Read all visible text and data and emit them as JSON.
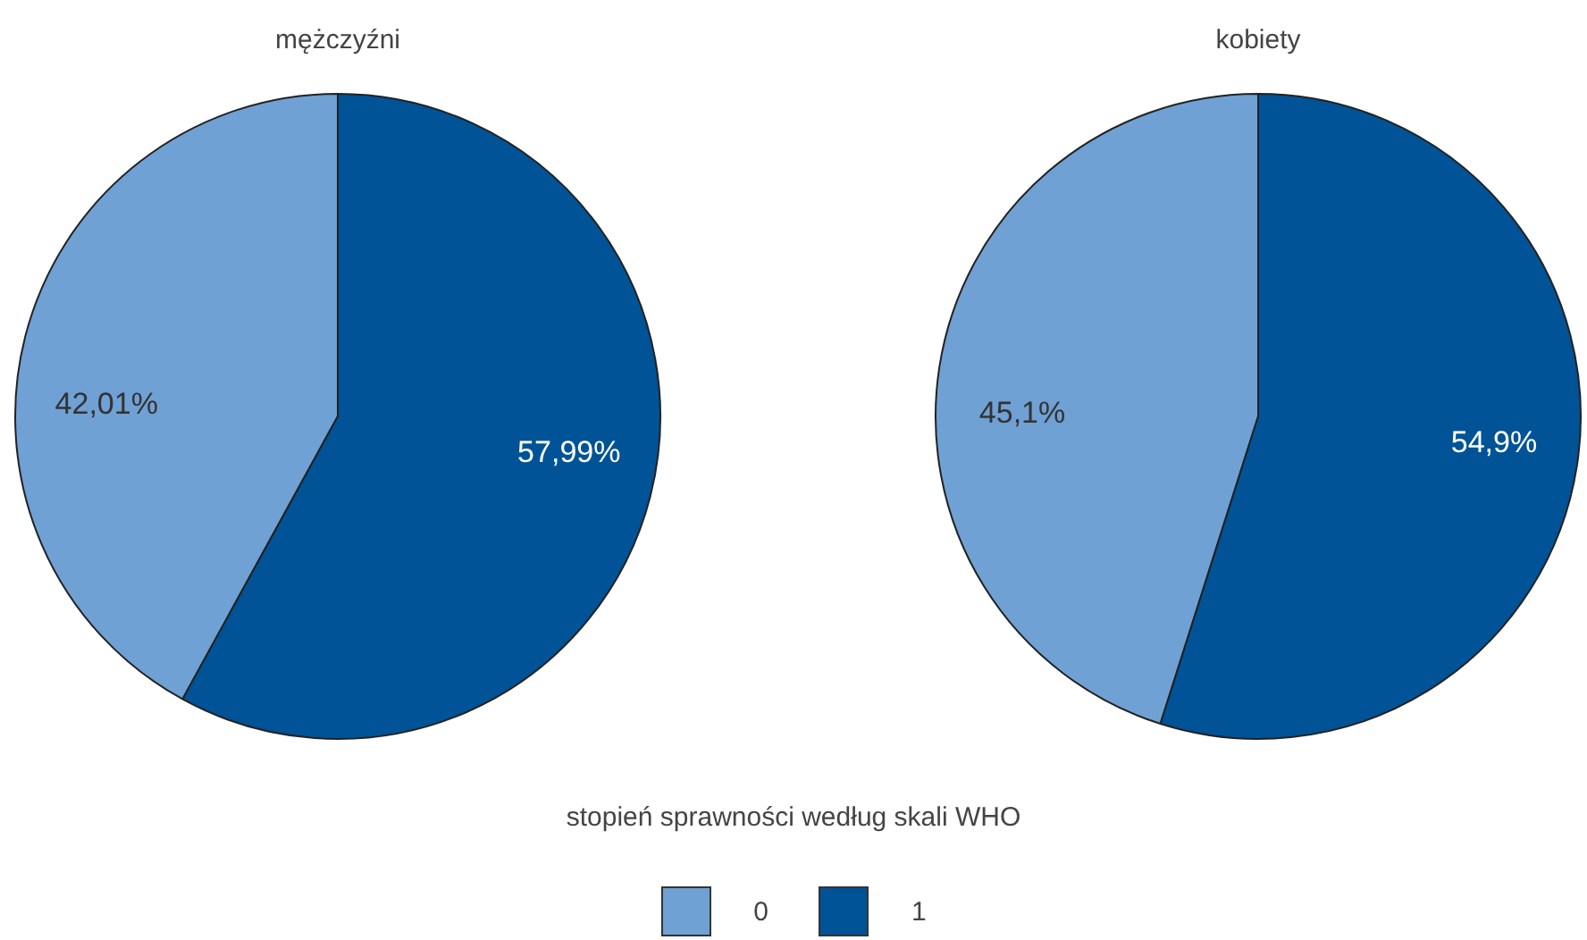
{
  "chart_data": {
    "type": "pie",
    "categories": [
      "0",
      "1"
    ],
    "colors": [
      "#6fa1d4",
      "#005396"
    ],
    "series": [
      {
        "name": "mężczyźni",
        "values": [
          42.01,
          57.99
        ],
        "value_labels": [
          "42,01%",
          "57,99%"
        ]
      },
      {
        "name": "kobiety",
        "values": [
          45.1,
          54.9
        ],
        "value_labels": [
          "45,1%",
          "54,9%"
        ]
      }
    ],
    "legend": "bottom",
    "legend_title": "stopień sprawności według skali WHO"
  }
}
